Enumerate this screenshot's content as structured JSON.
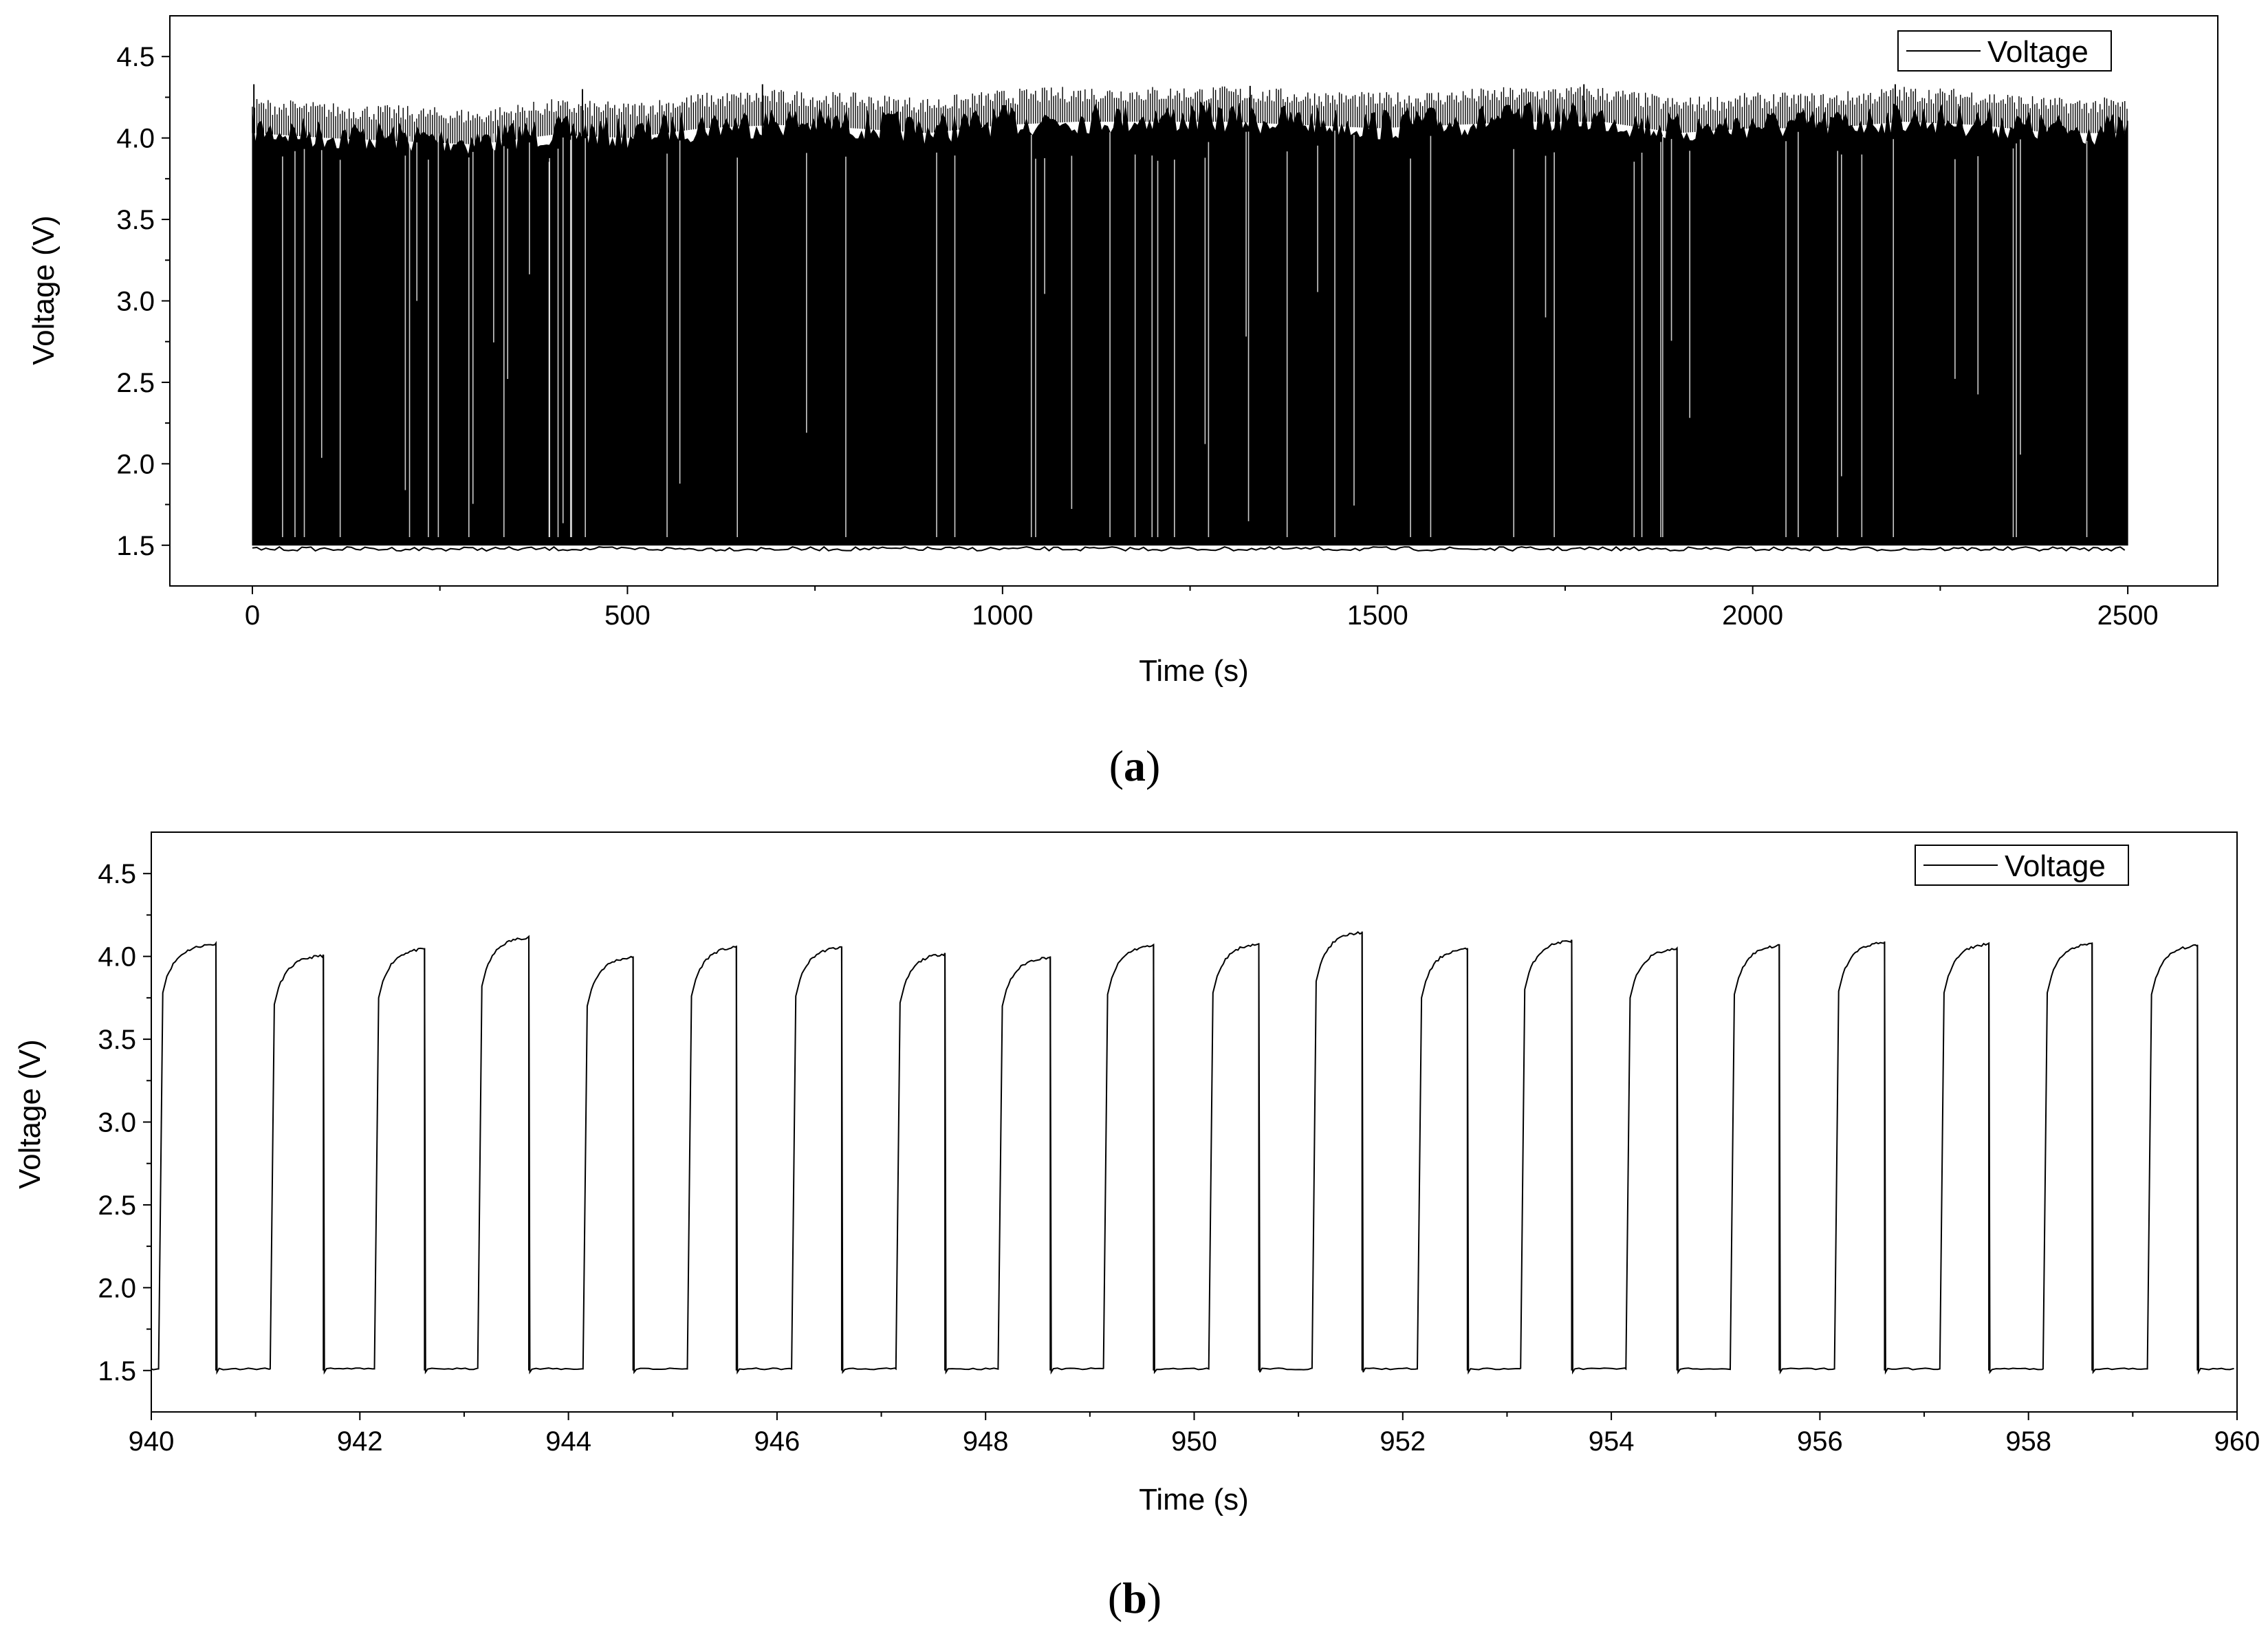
{
  "chart_data": [
    {
      "type": "line",
      "panel_label": "(a)",
      "panel_letter": "a",
      "xlabel": "Time (s)",
      "ylabel": "Voltage (V)",
      "xlim": [
        -110,
        2620
      ],
      "ylim": [
        1.25,
        4.75
      ],
      "xticks": [
        0,
        500,
        1000,
        1500,
        2000,
        2500
      ],
      "xtick_labels": [
        "0",
        "500",
        "1000",
        "1500",
        "2000",
        "2500"
      ],
      "yticks": [
        1.5,
        2.0,
        2.5,
        3.0,
        3.5,
        4.0,
        4.5
      ],
      "ytick_labels": [
        "1.5",
        "2.0",
        "2.5",
        "3.0",
        "3.5",
        "4.0",
        "4.5"
      ],
      "legend_position": "top-right",
      "series": [
        {
          "name": "Voltage",
          "color": "#000000",
          "description": "square-wave pulses at ~1 Hz",
          "x_range": [
            0,
            2500
          ],
          "low_level": 1.5,
          "high_level": 4.05,
          "high_envelope": {
            "x": [
              0,
              100,
              200,
              300,
              400,
              500,
              600,
              700,
              800,
              900,
              1000,
              1100,
              1200,
              1300,
              1400,
              1500,
              1600,
              1700,
              1800,
              1900,
              2000,
              2100,
              2200,
              2300,
              2400,
              2500
            ],
            "y": [
              4.15,
              4.12,
              4.1,
              4.08,
              4.14,
              4.12,
              4.18,
              4.2,
              4.18,
              4.15,
              4.2,
              4.22,
              4.22,
              4.22,
              4.2,
              4.18,
              4.2,
              4.22,
              4.22,
              4.15,
              4.18,
              4.18,
              4.22,
              4.2,
              4.15,
              4.15
            ]
          },
          "spike_peaks": {
            "x": [
              2,
              440,
              680,
              1330,
              1775,
              2190
            ],
            "y": [
              4.33,
              4.3,
              4.33,
              4.32,
              4.33,
              4.33
            ]
          }
        }
      ]
    },
    {
      "type": "line",
      "panel_label": "(b)",
      "panel_letter": "b",
      "xlabel": "Time (s)",
      "ylabel": "Voltage (V)",
      "xlim": [
        940,
        960
      ],
      "ylim": [
        1.25,
        4.75
      ],
      "xticks": [
        940,
        942,
        944,
        946,
        948,
        950,
        952,
        954,
        956,
        958,
        960
      ],
      "xtick_labels": [
        "940",
        "942",
        "944",
        "946",
        "948",
        "950",
        "952",
        "954",
        "956",
        "958",
        "960"
      ],
      "yticks": [
        1.5,
        2.0,
        2.5,
        3.0,
        3.5,
        4.0,
        4.5
      ],
      "ytick_labels": [
        "1.5",
        "2.0",
        "2.5",
        "3.0",
        "3.5",
        "4.0",
        "4.5"
      ],
      "legend_position": "top-right",
      "series": [
        {
          "name": "Voltage",
          "color": "#000000",
          "low_level": 1.5,
          "pulses": {
            "rise_time": [
              940.07,
              941.14,
              942.14,
              943.13,
              944.14,
              945.14,
              946.14,
              947.14,
              948.12,
              949.13,
              950.14,
              951.13,
              952.14,
              953.13,
              954.14,
              955.14,
              956.14,
              957.15,
              958.14,
              959.14
            ],
            "fall_time": [
              940.62,
              941.65,
              942.62,
              943.62,
              944.62,
              945.61,
              946.62,
              947.61,
              948.62,
              949.61,
              950.62,
              951.61,
              952.62,
              953.62,
              954.63,
              955.61,
              956.62,
              957.62,
              958.61,
              959.62
            ],
            "peak_voltage": [
              4.08,
              4.01,
              4.05,
              4.12,
              4.0,
              4.06,
              4.06,
              4.02,
              4.0,
              4.07,
              4.08,
              4.15,
              4.05,
              4.1,
              4.05,
              4.07,
              4.09,
              4.08,
              4.08,
              4.07
            ]
          }
        }
      ]
    }
  ]
}
